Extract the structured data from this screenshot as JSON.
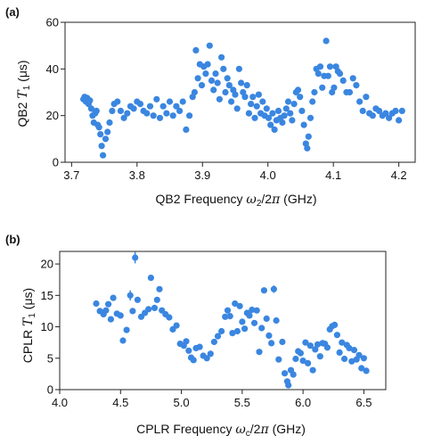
{
  "chart_data": [
    {
      "type": "scatter",
      "panel_label": "(a)",
      "color": "#3a86e0",
      "xlabel": {
        "pre": "QB2 Frequency ",
        "sym": "ω",
        "sub": "2",
        "post": "/2",
        "pi": "π",
        "unit": " (GHz)"
      },
      "ylabel": {
        "pre": "QB2 ",
        "sym": "T",
        "sub": "1",
        "unit": " (μs)"
      },
      "xlim": [
        3.69,
        4.225
      ],
      "ylim": [
        0,
        60
      ],
      "xticks": [
        3.7,
        3.8,
        3.9,
        4.0,
        4.1,
        4.2
      ],
      "xtick_labels": [
        "3.7",
        "3.8",
        "3.9",
        "4.0",
        "4.1",
        "4.2"
      ],
      "yticks": [
        0,
        20,
        40,
        60
      ],
      "ytick_labels": [
        "0",
        "20",
        "40",
        "60"
      ],
      "points": [
        [
          3.718,
          27
        ],
        [
          3.72,
          28
        ],
        [
          3.722,
          26
        ],
        [
          3.724,
          27.5
        ],
        [
          3.726,
          25
        ],
        [
          3.728,
          26.5
        ],
        [
          3.73,
          23
        ],
        [
          3.732,
          20
        ],
        [
          3.734,
          17
        ],
        [
          3.736,
          21
        ],
        [
          3.738,
          22
        ],
        [
          3.74,
          16
        ],
        [
          3.742,
          15
        ],
        [
          3.744,
          12
        ],
        [
          3.746,
          7
        ],
        [
          3.748,
          3
        ],
        [
          3.752,
          10
        ],
        [
          3.755,
          13
        ],
        [
          3.758,
          17
        ],
        [
          3.762,
          22
        ],
        [
          3.765,
          25
        ],
        [
          3.77,
          26
        ],
        [
          3.775,
          22
        ],
        [
          3.78,
          19
        ],
        [
          3.785,
          21
        ],
        [
          3.79,
          24
        ],
        [
          3.795,
          23
        ],
        [
          3.8,
          26
        ],
        [
          3.805,
          25
        ],
        [
          3.81,
          22
        ],
        [
          3.815,
          21
        ],
        [
          3.82,
          24
        ],
        [
          3.825,
          20
        ],
        [
          3.83,
          27
        ],
        [
          3.835,
          19
        ],
        [
          3.84,
          24
        ],
        [
          3.845,
          21
        ],
        [
          3.85,
          26
        ],
        [
          3.855,
          20
        ],
        [
          3.86,
          24
        ],
        [
          3.865,
          22
        ],
        [
          3.87,
          26
        ],
        [
          3.875,
          14
        ],
        [
          3.88,
          20
        ],
        [
          3.885,
          28
        ],
        [
          3.888,
          30
        ],
        [
          3.89,
          48
        ],
        [
          3.893,
          36
        ],
        [
          3.896,
          42
        ],
        [
          3.899,
          33
        ],
        [
          3.902,
          41
        ],
        [
          3.905,
          38
        ],
        [
          3.908,
          42
        ],
        [
          3.911,
          50
        ],
        [
          3.914,
          35
        ],
        [
          3.917,
          31
        ],
        [
          3.92,
          38
        ],
        [
          3.923,
          34
        ],
        [
          3.926,
          27
        ],
        [
          3.929,
          45
        ],
        [
          3.932,
          40
        ],
        [
          3.935,
          30
        ],
        [
          3.938,
          36
        ],
        [
          3.941,
          33
        ],
        [
          3.944,
          26
        ],
        [
          3.947,
          31
        ],
        [
          3.95,
          29
        ],
        [
          3.953,
          23
        ],
        [
          3.956,
          40
        ],
        [
          3.959,
          34
        ],
        [
          3.962,
          30
        ],
        [
          3.965,
          28
        ],
        [
          3.968,
          33
        ],
        [
          3.971,
          21
        ],
        [
          3.974,
          25
        ],
        [
          3.977,
          28
        ],
        [
          3.98,
          19
        ],
        [
          3.983,
          24
        ],
        [
          3.986,
          29
        ],
        [
          3.989,
          21
        ],
        [
          3.992,
          26
        ],
        [
          3.995,
          20
        ],
        [
          3.998,
          23
        ],
        [
          4.001,
          19
        ],
        [
          4.004,
          16
        ],
        [
          4.007,
          21
        ],
        [
          4.01,
          14
        ],
        [
          4.013,
          18
        ],
        [
          4.016,
          22
        ],
        [
          4.019,
          19
        ],
        [
          4.022,
          17
        ],
        [
          4.025,
          20
        ],
        [
          4.028,
          23
        ],
        [
          4.031,
          26
        ],
        [
          4.034,
          21
        ],
        [
          4.037,
          18
        ],
        [
          4.04,
          25
        ],
        [
          4.043,
          30
        ],
        [
          4.046,
          31
        ],
        [
          4.049,
          28
        ],
        [
          4.052,
          22
        ],
        [
          4.055,
          16
        ],
        [
          4.058,
          8
        ],
        [
          4.06,
          6
        ],
        [
          4.062,
          11
        ],
        [
          4.065,
          19
        ],
        [
          4.068,
          26
        ],
        [
          4.071,
          30
        ],
        [
          4.074,
          40
        ],
        [
          4.077,
          38
        ],
        [
          4.08,
          41
        ],
        [
          4.083,
          32
        ],
        [
          4.086,
          37
        ],
        [
          4.089,
          52
        ],
        [
          4.092,
          37
        ],
        [
          4.095,
          41
        ],
        [
          4.098,
          30
        ],
        [
          4.101,
          32
        ],
        [
          4.104,
          41
        ],
        [
          4.107,
          39
        ],
        [
          4.11,
          38
        ],
        [
          4.115,
          35
        ],
        [
          4.12,
          30
        ],
        [
          4.125,
          30
        ],
        [
          4.13,
          36
        ],
        [
          4.135,
          33
        ],
        [
          4.14,
          26
        ],
        [
          4.145,
          22
        ],
        [
          4.15,
          28
        ],
        [
          4.155,
          21
        ],
        [
          4.16,
          20
        ],
        [
          4.165,
          23
        ],
        [
          4.17,
          22
        ],
        [
          4.175,
          20
        ],
        [
          4.18,
          21
        ],
        [
          4.185,
          19
        ],
        [
          4.19,
          21
        ],
        [
          4.195,
          22
        ],
        [
          4.2,
          18
        ],
        [
          4.205,
          22
        ]
      ]
    },
    {
      "type": "scatter",
      "panel_label": "(b)",
      "color": "#3a86e0",
      "xlabel": {
        "pre": "CPLR Frequency ",
        "sym": "ω",
        "sub": "c",
        "post": "/2",
        "pi": "π",
        "unit": " (GHz)"
      },
      "ylabel": {
        "pre": "CPLR ",
        "sym": "T",
        "sub": "1",
        "unit": " (μs)"
      },
      "xlim": [
        4.0,
        6.68
      ],
      "ylim": [
        0,
        22
      ],
      "xticks": [
        4.0,
        4.5,
        5.0,
        5.5,
        6.0,
        6.5
      ],
      "xtick_labels": [
        "4.0",
        "4.5",
        "5.0",
        "5.5",
        "6.0",
        "6.5"
      ],
      "yticks": [
        0,
        5,
        10,
        15,
        20
      ],
      "ytick_labels": [
        "0",
        "5",
        "10",
        "15",
        "20"
      ],
      "points": [
        [
          4.3,
          13.7
        ],
        [
          4.33,
          12.5
        ],
        [
          4.36,
          12
        ],
        [
          4.38,
          12.6
        ],
        [
          4.4,
          13.6
        ],
        [
          4.42,
          11.2
        ],
        [
          4.44,
          14.6
        ],
        [
          4.47,
          12.1
        ],
        [
          4.5,
          11.8
        ],
        [
          4.52,
          7.8
        ],
        [
          4.55,
          9.5
        ],
        [
          4.58,
          15
        ],
        [
          4.6,
          12.5
        ],
        [
          4.62,
          21
        ],
        [
          4.64,
          14.3
        ],
        [
          4.67,
          11.6
        ],
        [
          4.7,
          12.2
        ],
        [
          4.73,
          12.8
        ],
        [
          4.75,
          17.8
        ],
        [
          4.78,
          13
        ],
        [
          4.8,
          14.3
        ],
        [
          4.82,
          16
        ],
        [
          4.84,
          12.6
        ],
        [
          4.87,
          12
        ],
        [
          4.9,
          11.5
        ],
        [
          4.93,
          9.6
        ],
        [
          4.96,
          10.2
        ],
        [
          4.99,
          7.3
        ],
        [
          5.02,
          7
        ],
        [
          5.04,
          7.7
        ],
        [
          5.06,
          6.2
        ],
        [
          5.08,
          5.1
        ],
        [
          5.1,
          4.7
        ],
        [
          5.12,
          6.6
        ],
        [
          5.15,
          6.8
        ],
        [
          5.18,
          5.4
        ],
        [
          5.21,
          5
        ],
        [
          5.24,
          5.7
        ],
        [
          5.27,
          7.6
        ],
        [
          5.3,
          8.5
        ],
        [
          5.33,
          9.3
        ],
        [
          5.36,
          11.6
        ],
        [
          5.38,
          12.6
        ],
        [
          5.4,
          11.7
        ],
        [
          5.42,
          9
        ],
        [
          5.44,
          13.7
        ],
        [
          5.46,
          9.3
        ],
        [
          5.48,
          13.3
        ],
        [
          5.5,
          10.8
        ],
        [
          5.52,
          9.7
        ],
        [
          5.54,
          12.2
        ],
        [
          5.56,
          11.8
        ],
        [
          5.58,
          12.7
        ],
        [
          5.6,
          10.6
        ],
        [
          5.62,
          12.6
        ],
        [
          5.64,
          6
        ],
        [
          5.66,
          9.8
        ],
        [
          5.68,
          15.8
        ],
        [
          5.7,
          11.3
        ],
        [
          5.72,
          8.6
        ],
        [
          5.74,
          7.4
        ],
        [
          5.76,
          16
        ],
        [
          5.78,
          11
        ],
        [
          5.8,
          4.8
        ],
        [
          5.83,
          7.6
        ],
        [
          5.85,
          2.6
        ],
        [
          5.87,
          1.3
        ],
        [
          5.88,
          0.7
        ],
        [
          5.9,
          3.1
        ],
        [
          5.92,
          2.4
        ],
        [
          5.94,
          4.9
        ],
        [
          5.96,
          6.1
        ],
        [
          5.98,
          5.8
        ],
        [
          6.0,
          4.6
        ],
        [
          6.02,
          7.5
        ],
        [
          6.04,
          4.2
        ],
        [
          6.06,
          7
        ],
        [
          6.08,
          3.1
        ],
        [
          6.1,
          6.4
        ],
        [
          6.12,
          7.2
        ],
        [
          6.14,
          5.3
        ],
        [
          6.16,
          7.4
        ],
        [
          6.18,
          7.3
        ],
        [
          6.2,
          6.7
        ],
        [
          6.22,
          9.6
        ],
        [
          6.24,
          10.1
        ],
        [
          6.26,
          10.3
        ],
        [
          6.28,
          8.7
        ],
        [
          6.3,
          5.9
        ],
        [
          6.32,
          7.5
        ],
        [
          6.34,
          4.9
        ],
        [
          6.36,
          7.1
        ],
        [
          6.38,
          6.6
        ],
        [
          6.4,
          4.5
        ],
        [
          6.42,
          6.3
        ],
        [
          6.44,
          4.8
        ],
        [
          6.46,
          5.5
        ],
        [
          6.48,
          3.4
        ],
        [
          6.5,
          5
        ],
        [
          6.52,
          3
        ]
      ],
      "error_bars": [
        {
          "x": 4.62,
          "y": 21,
          "err": 0.9
        },
        {
          "x": 4.58,
          "y": 15,
          "err": 0.8
        },
        {
          "x": 5.76,
          "y": 16,
          "err": 0.6
        }
      ]
    }
  ]
}
